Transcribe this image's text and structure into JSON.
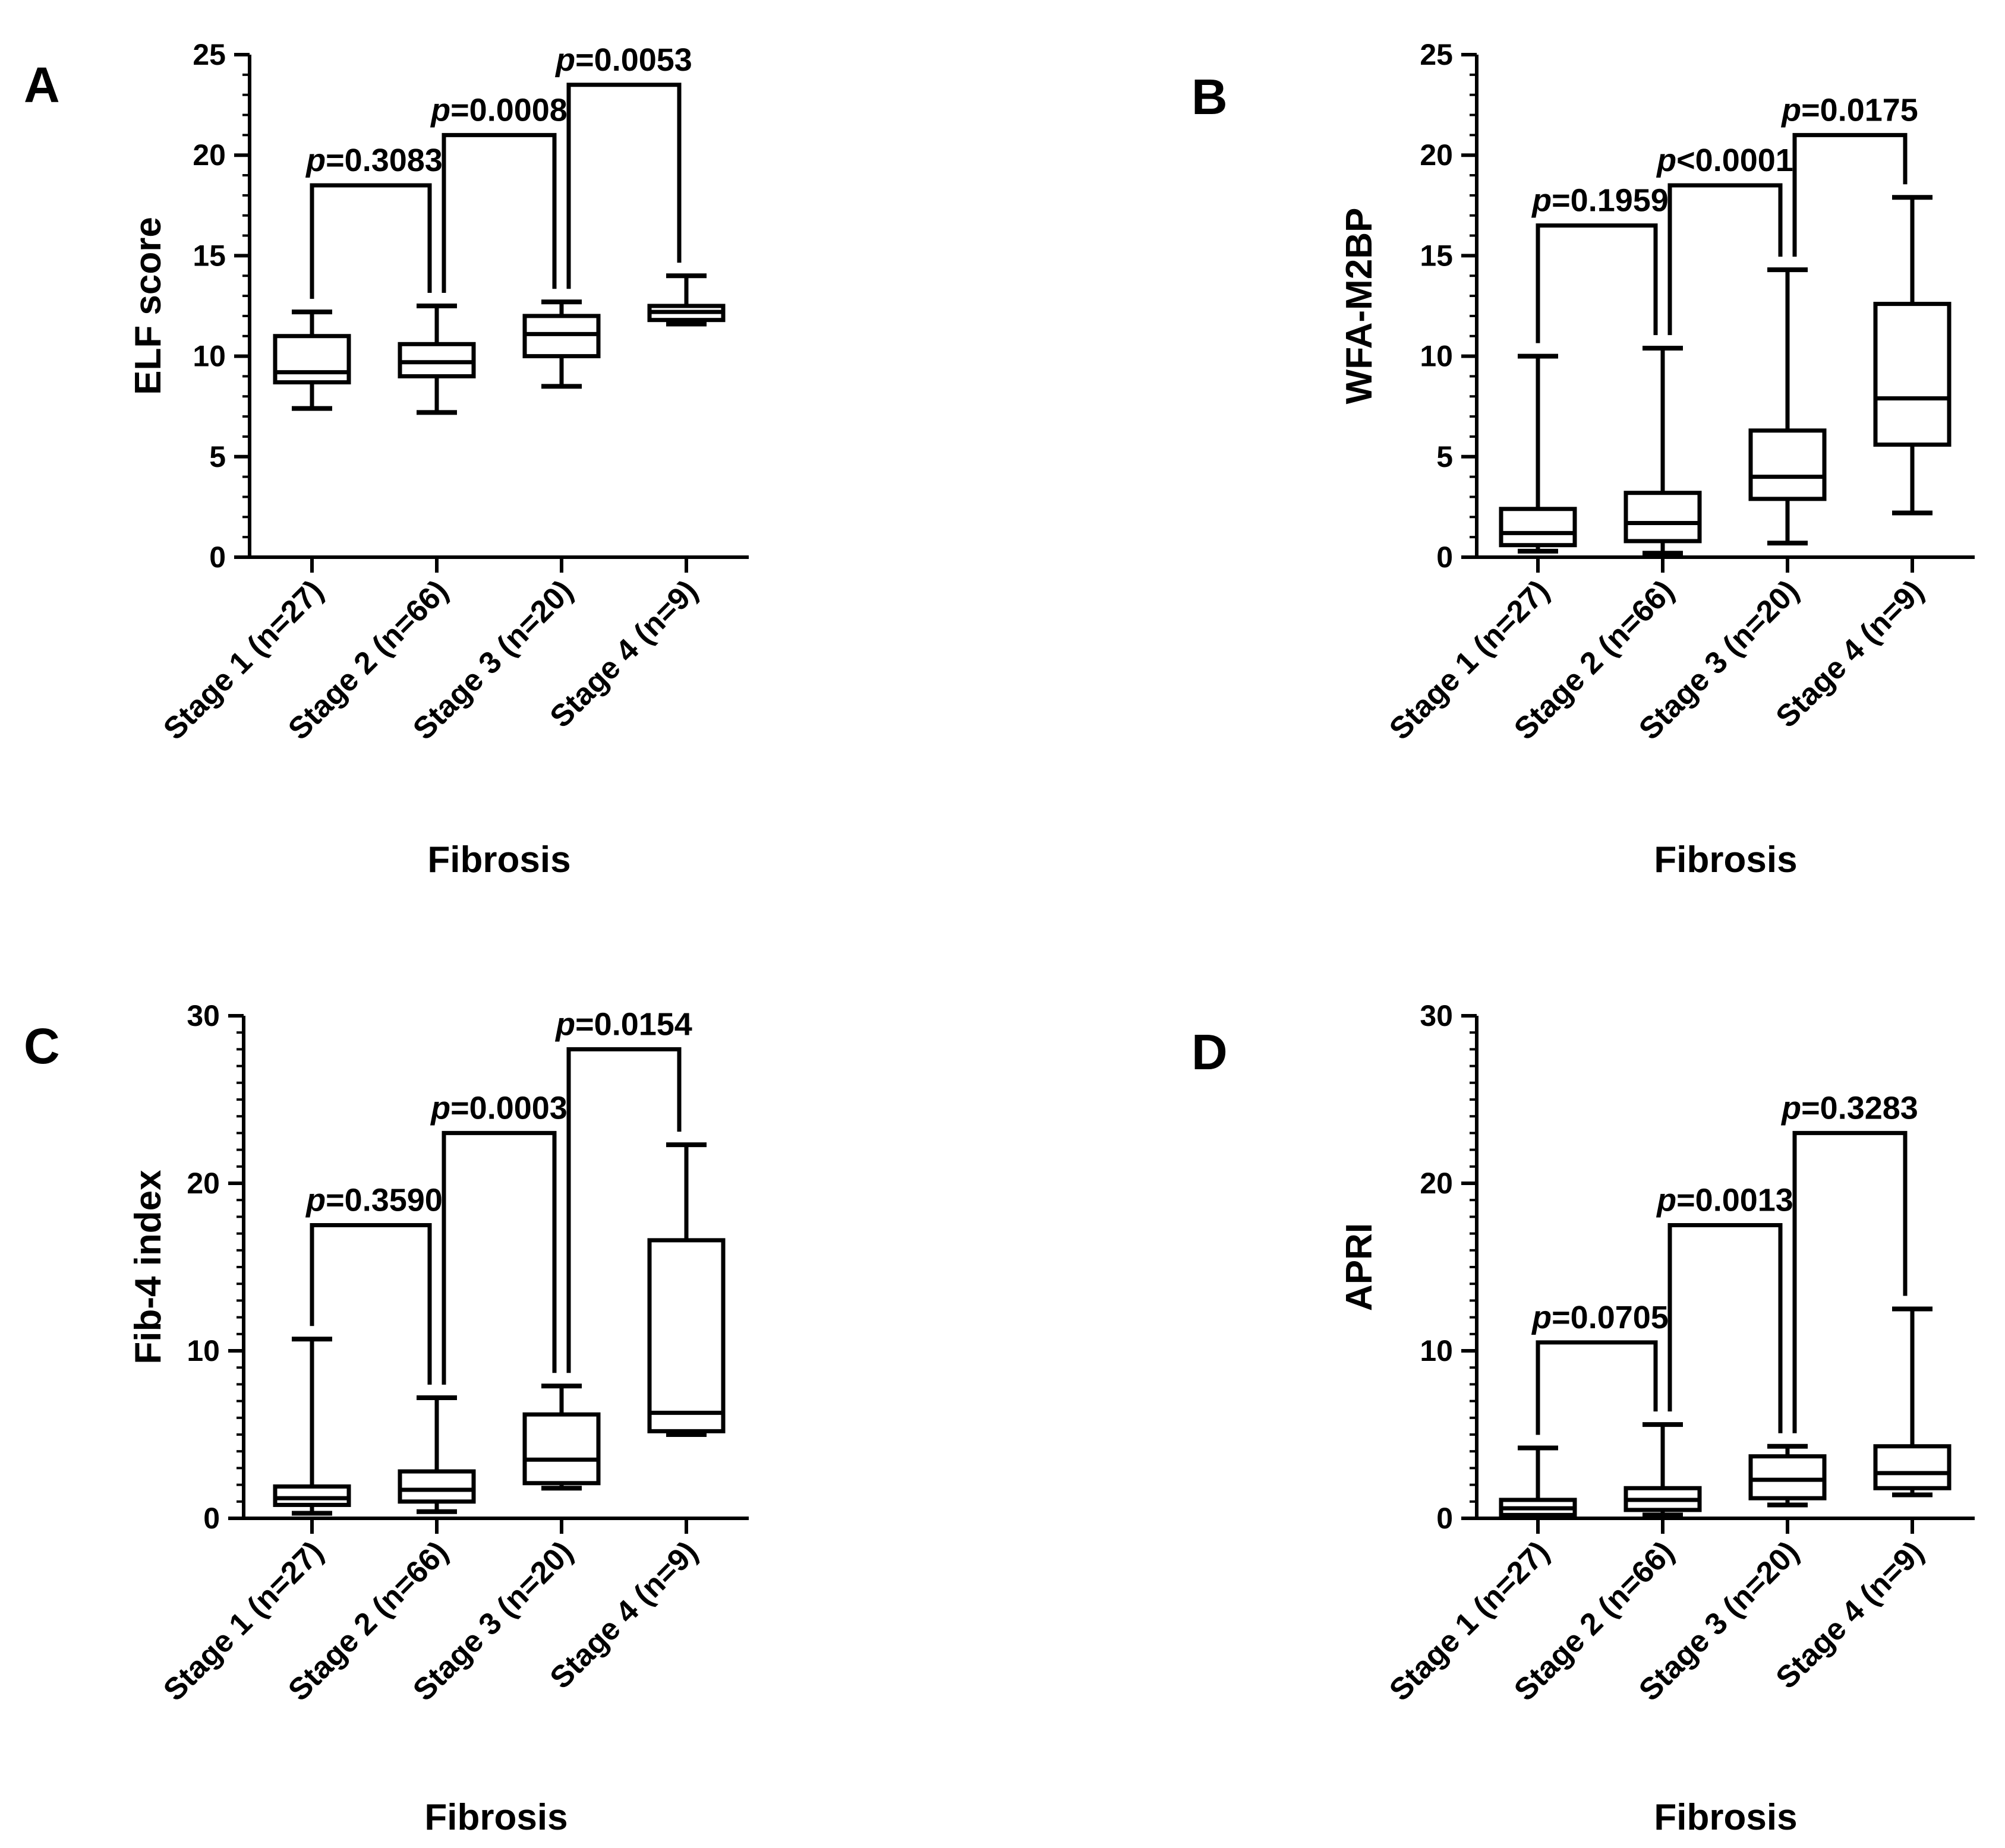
{
  "chart_data": [
    {
      "panel": "A",
      "type": "box",
      "ylabel": "ELF score",
      "xlabel": "Fibrosis",
      "ylim": [
        0,
        25
      ],
      "yticks": [
        0,
        5,
        10,
        15,
        20,
        25
      ],
      "categories": [
        "Stage 1 (n=27)",
        "Stage 2 (n=66)",
        "Stage 3 (n=20)",
        "Stage 4 (n=9)"
      ],
      "boxes": [
        {
          "min": 7.4,
          "q1": 8.7,
          "median": 9.2,
          "q3": 11.0,
          "max": 12.2
        },
        {
          "min": 7.2,
          "q1": 9.0,
          "median": 9.7,
          "q3": 10.6,
          "max": 12.5
        },
        {
          "min": 8.5,
          "q1": 10.0,
          "median": 11.1,
          "q3": 12.0,
          "max": 12.7
        },
        {
          "min": 11.6,
          "q1": 11.8,
          "median": 12.2,
          "q3": 12.5,
          "max": 14.0
        }
      ],
      "comparisons": [
        {
          "from": 0,
          "to": 1,
          "label": "p=0.3083",
          "y": 18.5
        },
        {
          "from": 1,
          "to": 2,
          "label": "p=0.0008",
          "y": 21.0
        },
        {
          "from": 2,
          "to": 3,
          "label": "p=0.0053",
          "y": 23.5
        }
      ]
    },
    {
      "panel": "B",
      "type": "box",
      "ylabel": "WFA-M2BP",
      "xlabel": "Fibrosis",
      "ylim": [
        0,
        25
      ],
      "yticks": [
        0,
        5,
        10,
        15,
        20,
        25
      ],
      "categories": [
        "Stage 1 (n=27)",
        "Stage 2 (n=66)",
        "Stage 3 (n=20)",
        "Stage 4 (n=9)"
      ],
      "boxes": [
        {
          "min": 0.3,
          "q1": 0.6,
          "median": 1.2,
          "q3": 2.4,
          "max": 10.0
        },
        {
          "min": 0.2,
          "q1": 0.8,
          "median": 1.7,
          "q3": 3.2,
          "max": 10.4
        },
        {
          "min": 0.7,
          "q1": 2.9,
          "median": 4.0,
          "q3": 6.3,
          "max": 14.3
        },
        {
          "min": 2.2,
          "q1": 5.6,
          "median": 7.9,
          "q3": 12.6,
          "max": 17.9
        }
      ],
      "comparisons": [
        {
          "from": 0,
          "to": 1,
          "label": "p=0.1959",
          "y": 16.5
        },
        {
          "from": 1,
          "to": 2,
          "label": "p<0.0001",
          "y": 18.5
        },
        {
          "from": 2,
          "to": 3,
          "label": "p=0.0175",
          "y": 21.0
        }
      ]
    },
    {
      "panel": "C",
      "type": "box",
      "ylabel": "Fib-4 index",
      "xlabel": "Fibrosis",
      "ylim": [
        0,
        30
      ],
      "yticks": [
        0,
        10,
        20,
        30
      ],
      "categories": [
        "Stage 1 (n=27)",
        "Stage 2 (n=66)",
        "Stage 3 (n=20)",
        "Stage 4 (n=9)"
      ],
      "boxes": [
        {
          "min": 0.3,
          "q1": 0.8,
          "median": 1.2,
          "q3": 1.9,
          "max": 10.7
        },
        {
          "min": 0.4,
          "q1": 1.0,
          "median": 1.7,
          "q3": 2.8,
          "max": 7.2
        },
        {
          "min": 1.8,
          "q1": 2.1,
          "median": 3.5,
          "q3": 6.2,
          "max": 7.9
        },
        {
          "min": 5.0,
          "q1": 5.2,
          "median": 6.3,
          "q3": 16.6,
          "max": 22.3
        }
      ],
      "comparisons": [
        {
          "from": 0,
          "to": 1,
          "label": "p=0.3590",
          "y": 17.5
        },
        {
          "from": 1,
          "to": 2,
          "label": "p=0.0003",
          "y": 23.0
        },
        {
          "from": 2,
          "to": 3,
          "label": "p=0.0154",
          "y": 28.0
        }
      ]
    },
    {
      "panel": "D",
      "type": "box",
      "ylabel": "APRI",
      "xlabel": "Fibrosis",
      "ylim": [
        0,
        30
      ],
      "yticks": [
        0,
        10,
        20,
        30
      ],
      "categories": [
        "Stage 1 (n=27)",
        "Stage 2 (n=66)",
        "Stage 3 (n=20)",
        "Stage 4 (n=9)"
      ],
      "boxes": [
        {
          "min": 0.1,
          "q1": 0.2,
          "median": 0.6,
          "q3": 1.1,
          "max": 4.2
        },
        {
          "min": 0.2,
          "q1": 0.5,
          "median": 1.1,
          "q3": 1.8,
          "max": 5.6
        },
        {
          "min": 0.8,
          "q1": 1.2,
          "median": 2.3,
          "q3": 3.7,
          "max": 4.3
        },
        {
          "min": 1.4,
          "q1": 1.8,
          "median": 2.7,
          "q3": 4.3,
          "max": 12.5
        }
      ],
      "comparisons": [
        {
          "from": 0,
          "to": 1,
          "label": "p=0.0705",
          "y": 10.5
        },
        {
          "from": 1,
          "to": 2,
          "label": "p=0.0013",
          "y": 17.5
        },
        {
          "from": 2,
          "to": 3,
          "label": "p=0.3283",
          "y": 23.0
        }
      ]
    }
  ]
}
